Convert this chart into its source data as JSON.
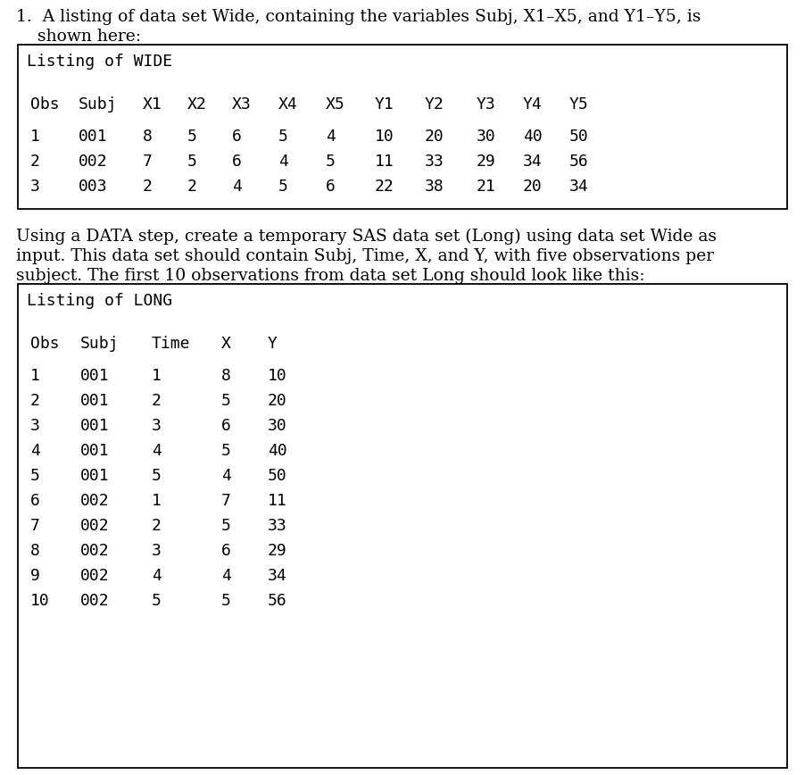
{
  "title_line1": "1.  A listing of data set Wide, containing the variables Subj, X1–X5, and Y1–Y5, is",
  "title_line2": "    shown here:",
  "wide_title": "Listing of WIDE",
  "wide_headers": [
    "Obs",
    "Subj",
    "X1",
    "X2",
    "X3",
    "X4",
    "X5",
    "Y1",
    "Y2",
    "Y3",
    "Y4",
    "Y5"
  ],
  "wide_rows": [
    [
      "1",
      "001",
      "8",
      "5",
      "6",
      "5",
      "4",
      "10",
      "20",
      "30",
      "40",
      "50"
    ],
    [
      "2",
      "002",
      "7",
      "5",
      "6",
      "4",
      "5",
      "11",
      "33",
      "29",
      "34",
      "56"
    ],
    [
      "3",
      "003",
      "2",
      "2",
      "4",
      "5",
      "6",
      "22",
      "38",
      "21",
      "20",
      "34"
    ]
  ],
  "middle_line1": "Using a DATA step, create a temporary SAS data set (Long) using data set Wide as",
  "middle_line2": "input. This data set should contain Subj, Time, X, and Y, with five observations per",
  "middle_line3": "subject. The first 10 observations from data set Long should look like this:",
  "long_title": "Listing of LONG",
  "long_headers": [
    "Obs",
    "Subj",
    "Time",
    "X",
    "Y"
  ],
  "long_rows": [
    [
      "1",
      "001",
      "1",
      "8",
      "10"
    ],
    [
      "2",
      "001",
      "2",
      "5",
      "20"
    ],
    [
      "3",
      "001",
      "3",
      "6",
      "30"
    ],
    [
      "4",
      "001",
      "4",
      "5",
      "40"
    ],
    [
      "5",
      "001",
      "5",
      "4",
      "50"
    ],
    [
      "6",
      "002",
      "1",
      "7",
      "11"
    ],
    [
      "7",
      "002",
      "2",
      "5",
      "33"
    ],
    [
      "8",
      "002",
      "3",
      "6",
      "29"
    ],
    [
      "9",
      "002",
      "4",
      "4",
      "34"
    ],
    [
      "10",
      "002",
      "5",
      "5",
      "56"
    ]
  ],
  "bg_color": "#ffffff",
  "text_color": "#000000",
  "box_color": "#000000",
  "font_size_body": 13.5,
  "font_size_mono": 13.0
}
